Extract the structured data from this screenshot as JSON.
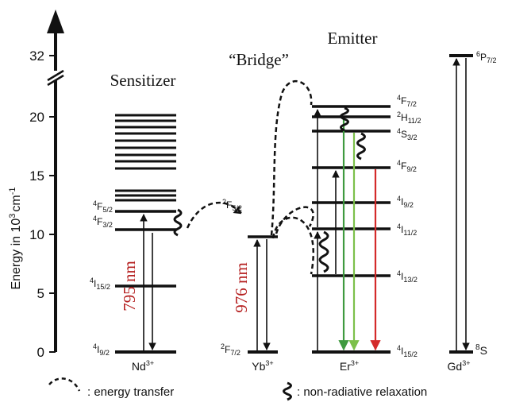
{
  "axis": {
    "label_main": "Energy in 10",
    "label_sup": "3",
    "label_unit": "cm",
    "label_unit_sup": "-1",
    "ticks": [
      "0",
      "5",
      "10",
      "15",
      "20",
      "32"
    ]
  },
  "headers": {
    "sensitizer": "Sensitizer",
    "bridge": "“Bridge”",
    "emitter": "Emitter"
  },
  "ions": {
    "nd": {
      "base": "Nd",
      "sup": "3+"
    },
    "yb": {
      "base": "Yb",
      "sup": "3+"
    },
    "er": {
      "base": "Er",
      "sup": "3+"
    },
    "gd": {
      "base": "Gd",
      "sup": "3+"
    }
  },
  "levels": {
    "nd_f52": {
      "pre": "4",
      "base": "F",
      "sub": "5/2"
    },
    "nd_f32": {
      "pre": "4",
      "base": "F",
      "sub": "3/2"
    },
    "nd_i152": {
      "pre": "4",
      "base": "I",
      "sub": "15/2"
    },
    "nd_i92": {
      "pre": "4",
      "base": "I",
      "sub": "9/2"
    },
    "yb_f52": {
      "pre": "2",
      "base": "F",
      "sub": "5/2"
    },
    "yb_f72": {
      "pre": "2",
      "base": "F",
      "sub": "7/2"
    },
    "er_f72": {
      "pre": "4",
      "base": "F",
      "sub": "7/2"
    },
    "er_h112": {
      "pre": "2",
      "base": "H",
      "sub": "11/2"
    },
    "er_s32": {
      "pre": "4",
      "base": "S",
      "sub": "3/2"
    },
    "er_f92": {
      "pre": "4",
      "base": "F",
      "sub": "9/2"
    },
    "er_i92": {
      "pre": "4",
      "base": "I",
      "sub": "9/2"
    },
    "er_i112": {
      "pre": "4",
      "base": "I",
      "sub": "11/2"
    },
    "er_i132": {
      "pre": "4",
      "base": "I",
      "sub": "13/2"
    },
    "er_i152": {
      "pre": "4",
      "base": "I",
      "sub": "15/2"
    },
    "gd_p72": {
      "pre": "6",
      "base": "P",
      "sub": "7/2"
    },
    "gd_s": {
      "pre": "8",
      "base": "S",
      "sub": ""
    }
  },
  "excitation": {
    "nd": "795 nm",
    "yb": "976 nm"
  },
  "legend": {
    "energy_transfer": ": energy transfer",
    "nonradiative": ": non-radiative relaxation"
  },
  "colors": {
    "excitation_label": "#b52020",
    "emission_green": "#3f9a3f",
    "emission_light_green": "#7cc04a",
    "emission_red": "#d42a2a"
  }
}
